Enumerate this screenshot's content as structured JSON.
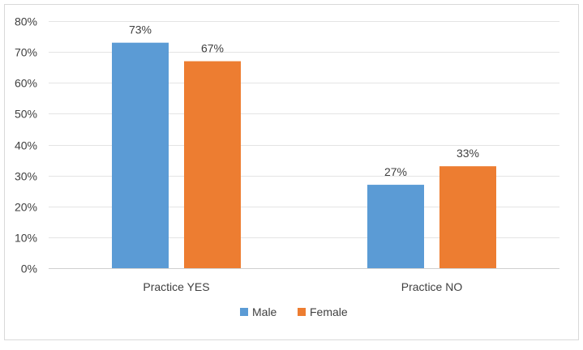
{
  "chart_data": {
    "type": "bar",
    "title": "",
    "xlabel": "",
    "ylabel": "",
    "categories": [
      "Practice YES",
      "Practice NO"
    ],
    "series": [
      {
        "name": "Male",
        "values": [
          73,
          27
        ],
        "labels": [
          "73%",
          "27%"
        ],
        "color": "#5B9BD5"
      },
      {
        "name": "Female",
        "values": [
          67,
          33
        ],
        "labels": [
          "67%",
          "33%"
        ],
        "color": "#ED7D31"
      }
    ],
    "ylim": [
      0,
      80
    ],
    "yticks": [
      0,
      10,
      20,
      30,
      40,
      50,
      60,
      70,
      80
    ],
    "ytick_labels": [
      "0%",
      "10%",
      "20%",
      "30%",
      "40%",
      "50%",
      "60%",
      "70%",
      "80%"
    ],
    "grid": true,
    "legend_position": "bottom"
  }
}
